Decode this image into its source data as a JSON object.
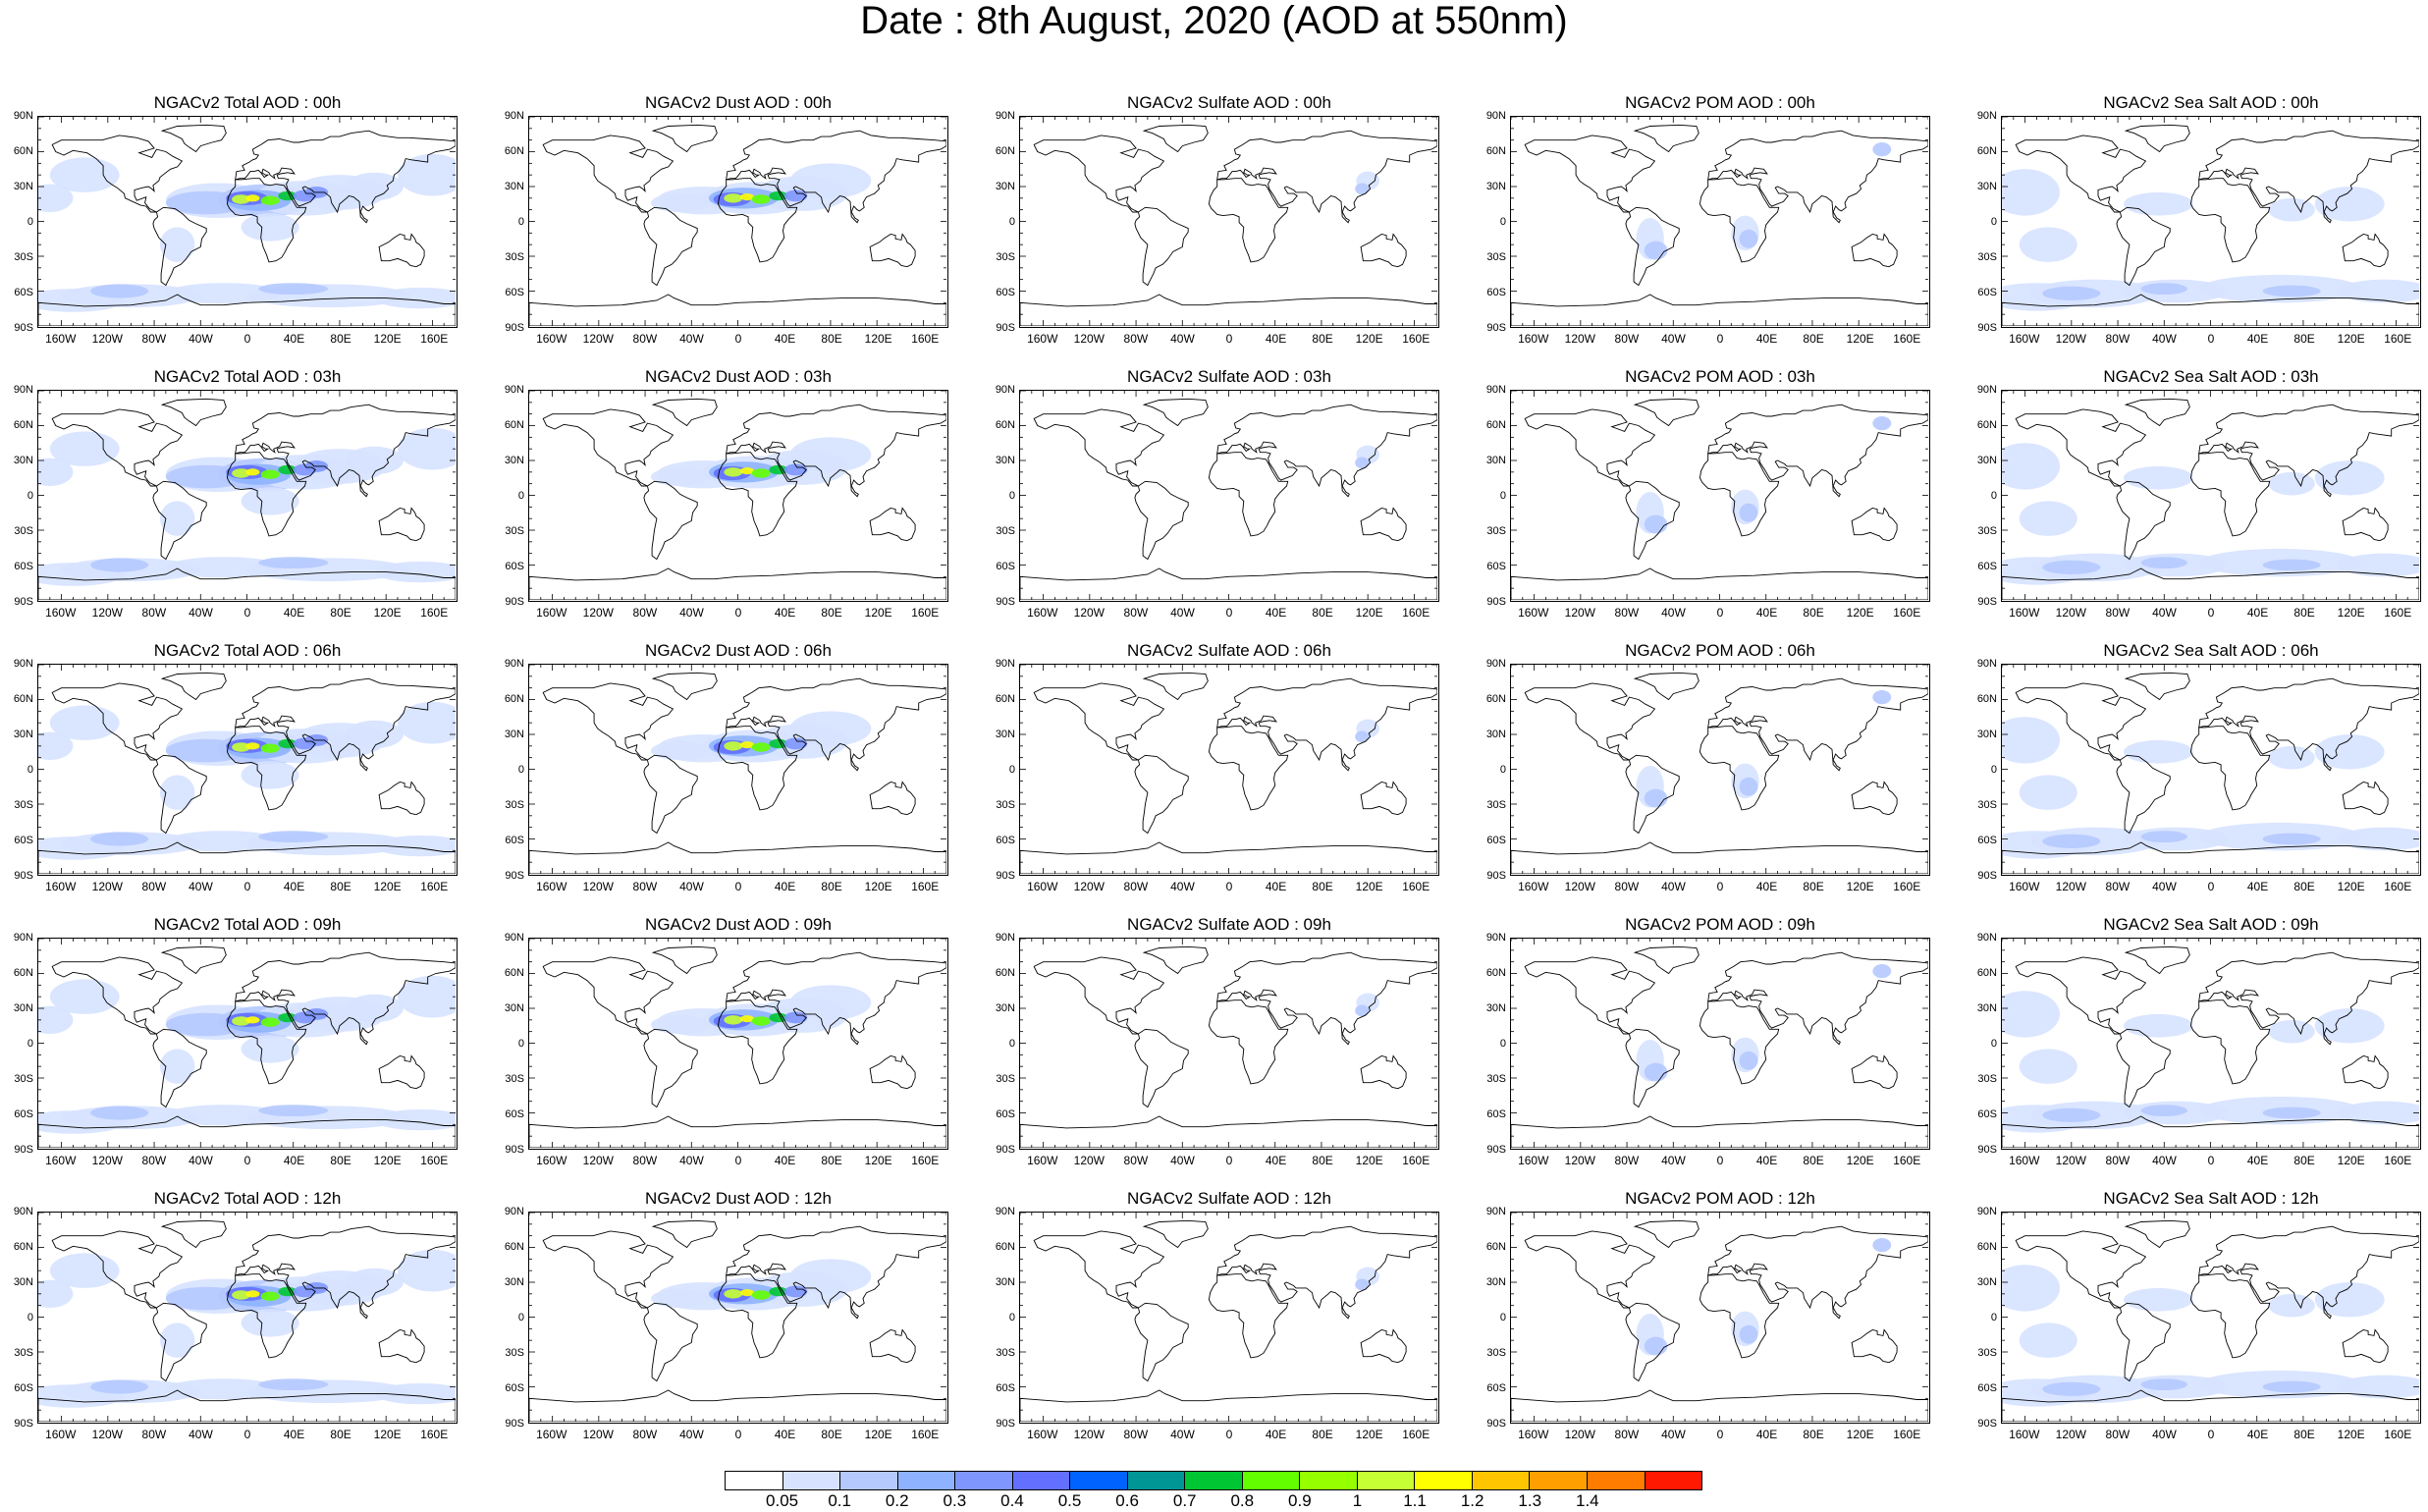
{
  "title": "Date : 8th August, 2020 (AOD at 550nm)",
  "lat_labels": [
    "90N",
    "60N",
    "30N",
    "0",
    "30S",
    "60S",
    "90S"
  ],
  "lon_labels": [
    "160W",
    "120W",
    "80W",
    "40W",
    "0",
    "40E",
    "80E",
    "120E",
    "160E"
  ],
  "panels": [
    [
      {
        "title": "NGACv2 Total AOD : 00h",
        "species": "total"
      },
      {
        "title": "NGACv2 Dust AOD : 00h",
        "species": "dust"
      },
      {
        "title": "NGACv2 Sulfate AOD : 00h",
        "species": "sulfate"
      },
      {
        "title": "NGACv2 POM AOD : 00h",
        "species": "pom"
      },
      {
        "title": "NGACv2 Sea Salt AOD : 00h",
        "species": "seasalt"
      }
    ],
    [
      {
        "title": "NGACv2 Total AOD : 03h",
        "species": "total"
      },
      {
        "title": "NGACv2 Dust AOD : 03h",
        "species": "dust"
      },
      {
        "title": "NGACv2 Sulfate AOD : 03h",
        "species": "sulfate"
      },
      {
        "title": "NGACv2 POM AOD : 03h",
        "species": "pom"
      },
      {
        "title": "NGACv2 Sea Salt AOD : 03h",
        "species": "seasalt"
      }
    ],
    [
      {
        "title": "NGACv2 Total AOD : 06h",
        "species": "total"
      },
      {
        "title": "NGACv2 Dust AOD : 06h",
        "species": "dust"
      },
      {
        "title": "NGACv2 Sulfate AOD : 06h",
        "species": "sulfate"
      },
      {
        "title": "NGACv2 POM AOD : 06h",
        "species": "pom"
      },
      {
        "title": "NGACv2 Sea Salt AOD : 06h",
        "species": "seasalt"
      }
    ],
    [
      {
        "title": "NGACv2 Total AOD : 09h",
        "species": "total"
      },
      {
        "title": "NGACv2 Dust AOD : 09h",
        "species": "dust"
      },
      {
        "title": "NGACv2 Sulfate AOD : 09h",
        "species": "sulfate"
      },
      {
        "title": "NGACv2 POM AOD : 09h",
        "species": "pom"
      },
      {
        "title": "NGACv2 Sea Salt  AOD : 09h",
        "species": "seasalt"
      }
    ],
    [
      {
        "title": "NGACv2 Total AOD  : 12h",
        "species": "total"
      },
      {
        "title": "NGACv2 Dust AOD : 12h",
        "species": "dust"
      },
      {
        "title": "NGACv2 Sulfate AOD : 12h",
        "species": "sulfate"
      },
      {
        "title": "NGACv2 POM  AOD : 12h",
        "species": "pom"
      },
      {
        "title": "NGACv2 Sea Salt  AOD : 12h",
        "species": "seasalt"
      }
    ]
  ],
  "colorbar": {
    "colors": [
      "#ffffff",
      "#d6e2ff",
      "#b5c9ff",
      "#8eb2ff",
      "#7f96ff",
      "#6370ff",
      "#0063ff",
      "#009696",
      "#00c633",
      "#63ff00",
      "#96ff00",
      "#c6ff33",
      "#ffff00",
      "#ffc600",
      "#ffa000",
      "#ff7c00",
      "#ff1900"
    ],
    "labels": [
      "0.05",
      "0.1",
      "0.2",
      "0.3",
      "0.4",
      "0.5",
      "0.6",
      "0.7",
      "0.8",
      "0.9",
      "1",
      "1.1",
      "1.2",
      "1.3",
      "1.4"
    ]
  }
}
